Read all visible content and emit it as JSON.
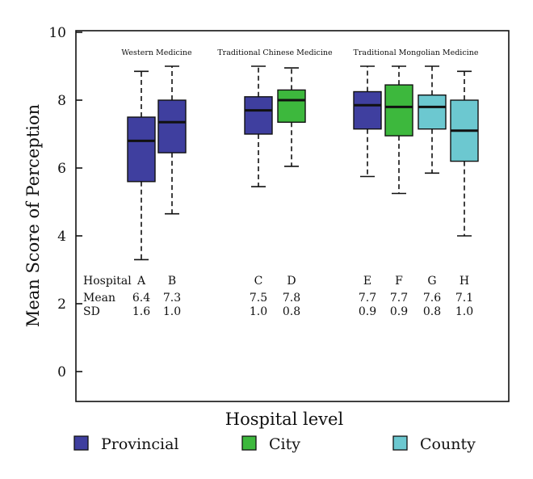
{
  "chart_data": {
    "type": "box",
    "ylabel": "Mean Score of Perception",
    "xlabel": "Hospital level",
    "ylim": [
      0,
      10
    ],
    "yticks": [
      0,
      2,
      4,
      6,
      8,
      10
    ],
    "groups": [
      {
        "label": "Western Medicine",
        "members": [
          "A",
          "B"
        ]
      },
      {
        "label": "Traditional Chinese Medicine",
        "members": [
          "C",
          "D"
        ]
      },
      {
        "label": "Traditional Mongolian Medicine",
        "members": [
          "E",
          "F",
          "G",
          "H"
        ]
      }
    ],
    "levels": [
      {
        "name": "Provincial",
        "color": "#3f3f9f"
      },
      {
        "name": "City",
        "color": "#3db83d"
      },
      {
        "name": "County",
        "color": "#6cc8d0"
      }
    ],
    "boxes": [
      {
        "hospital": "A",
        "level": "Provincial",
        "whisker_low": 3.3,
        "q1": 5.6,
        "median": 6.8,
        "q3": 7.5,
        "whisker_high": 8.85
      },
      {
        "hospital": "B",
        "level": "Provincial",
        "whisker_low": 4.65,
        "q1": 6.45,
        "median": 7.35,
        "q3": 8.0,
        "whisker_high": 9.0
      },
      {
        "hospital": "C",
        "level": "Provincial",
        "whisker_low": 5.45,
        "q1": 7.0,
        "median": 7.7,
        "q3": 8.1,
        "whisker_high": 9.0
      },
      {
        "hospital": "D",
        "level": "City",
        "whisker_low": 6.05,
        "q1": 7.35,
        "median": 8.0,
        "q3": 8.3,
        "whisker_high": 8.95
      },
      {
        "hospital": "E",
        "level": "Provincial",
        "whisker_low": 5.75,
        "q1": 7.15,
        "median": 7.85,
        "q3": 8.25,
        "whisker_high": 9.0
      },
      {
        "hospital": "F",
        "level": "City",
        "whisker_low": 5.25,
        "q1": 6.95,
        "median": 7.8,
        "q3": 8.45,
        "whisker_high": 9.0
      },
      {
        "hospital": "G",
        "level": "County",
        "whisker_low": 5.85,
        "q1": 7.15,
        "median": 7.8,
        "q3": 8.15,
        "whisker_high": 9.0
      },
      {
        "hospital": "H",
        "level": "County",
        "whisker_low": 4.0,
        "q1": 6.2,
        "median": 7.1,
        "q3": 8.0,
        "whisker_high": 8.85
      }
    ],
    "stats_table": {
      "row_labels": [
        "Hospital",
        "Mean",
        "SD"
      ],
      "rows": [
        {
          "hospital": "A",
          "mean": "6.4",
          "sd": "1.6"
        },
        {
          "hospital": "B",
          "mean": "7.3",
          "sd": "1.0"
        },
        {
          "hospital": "C",
          "mean": "7.5",
          "sd": "1.0"
        },
        {
          "hospital": "D",
          "mean": "7.8",
          "sd": "0.8"
        },
        {
          "hospital": "E",
          "mean": "7.7",
          "sd": "0.9"
        },
        {
          "hospital": "F",
          "mean": "7.7",
          "sd": "0.9"
        },
        {
          "hospital": "G",
          "mean": "7.6",
          "sd": "0.8"
        },
        {
          "hospital": "H",
          "mean": "7.1",
          "sd": "1.0"
        }
      ]
    },
    "legend_position": "bottom"
  }
}
